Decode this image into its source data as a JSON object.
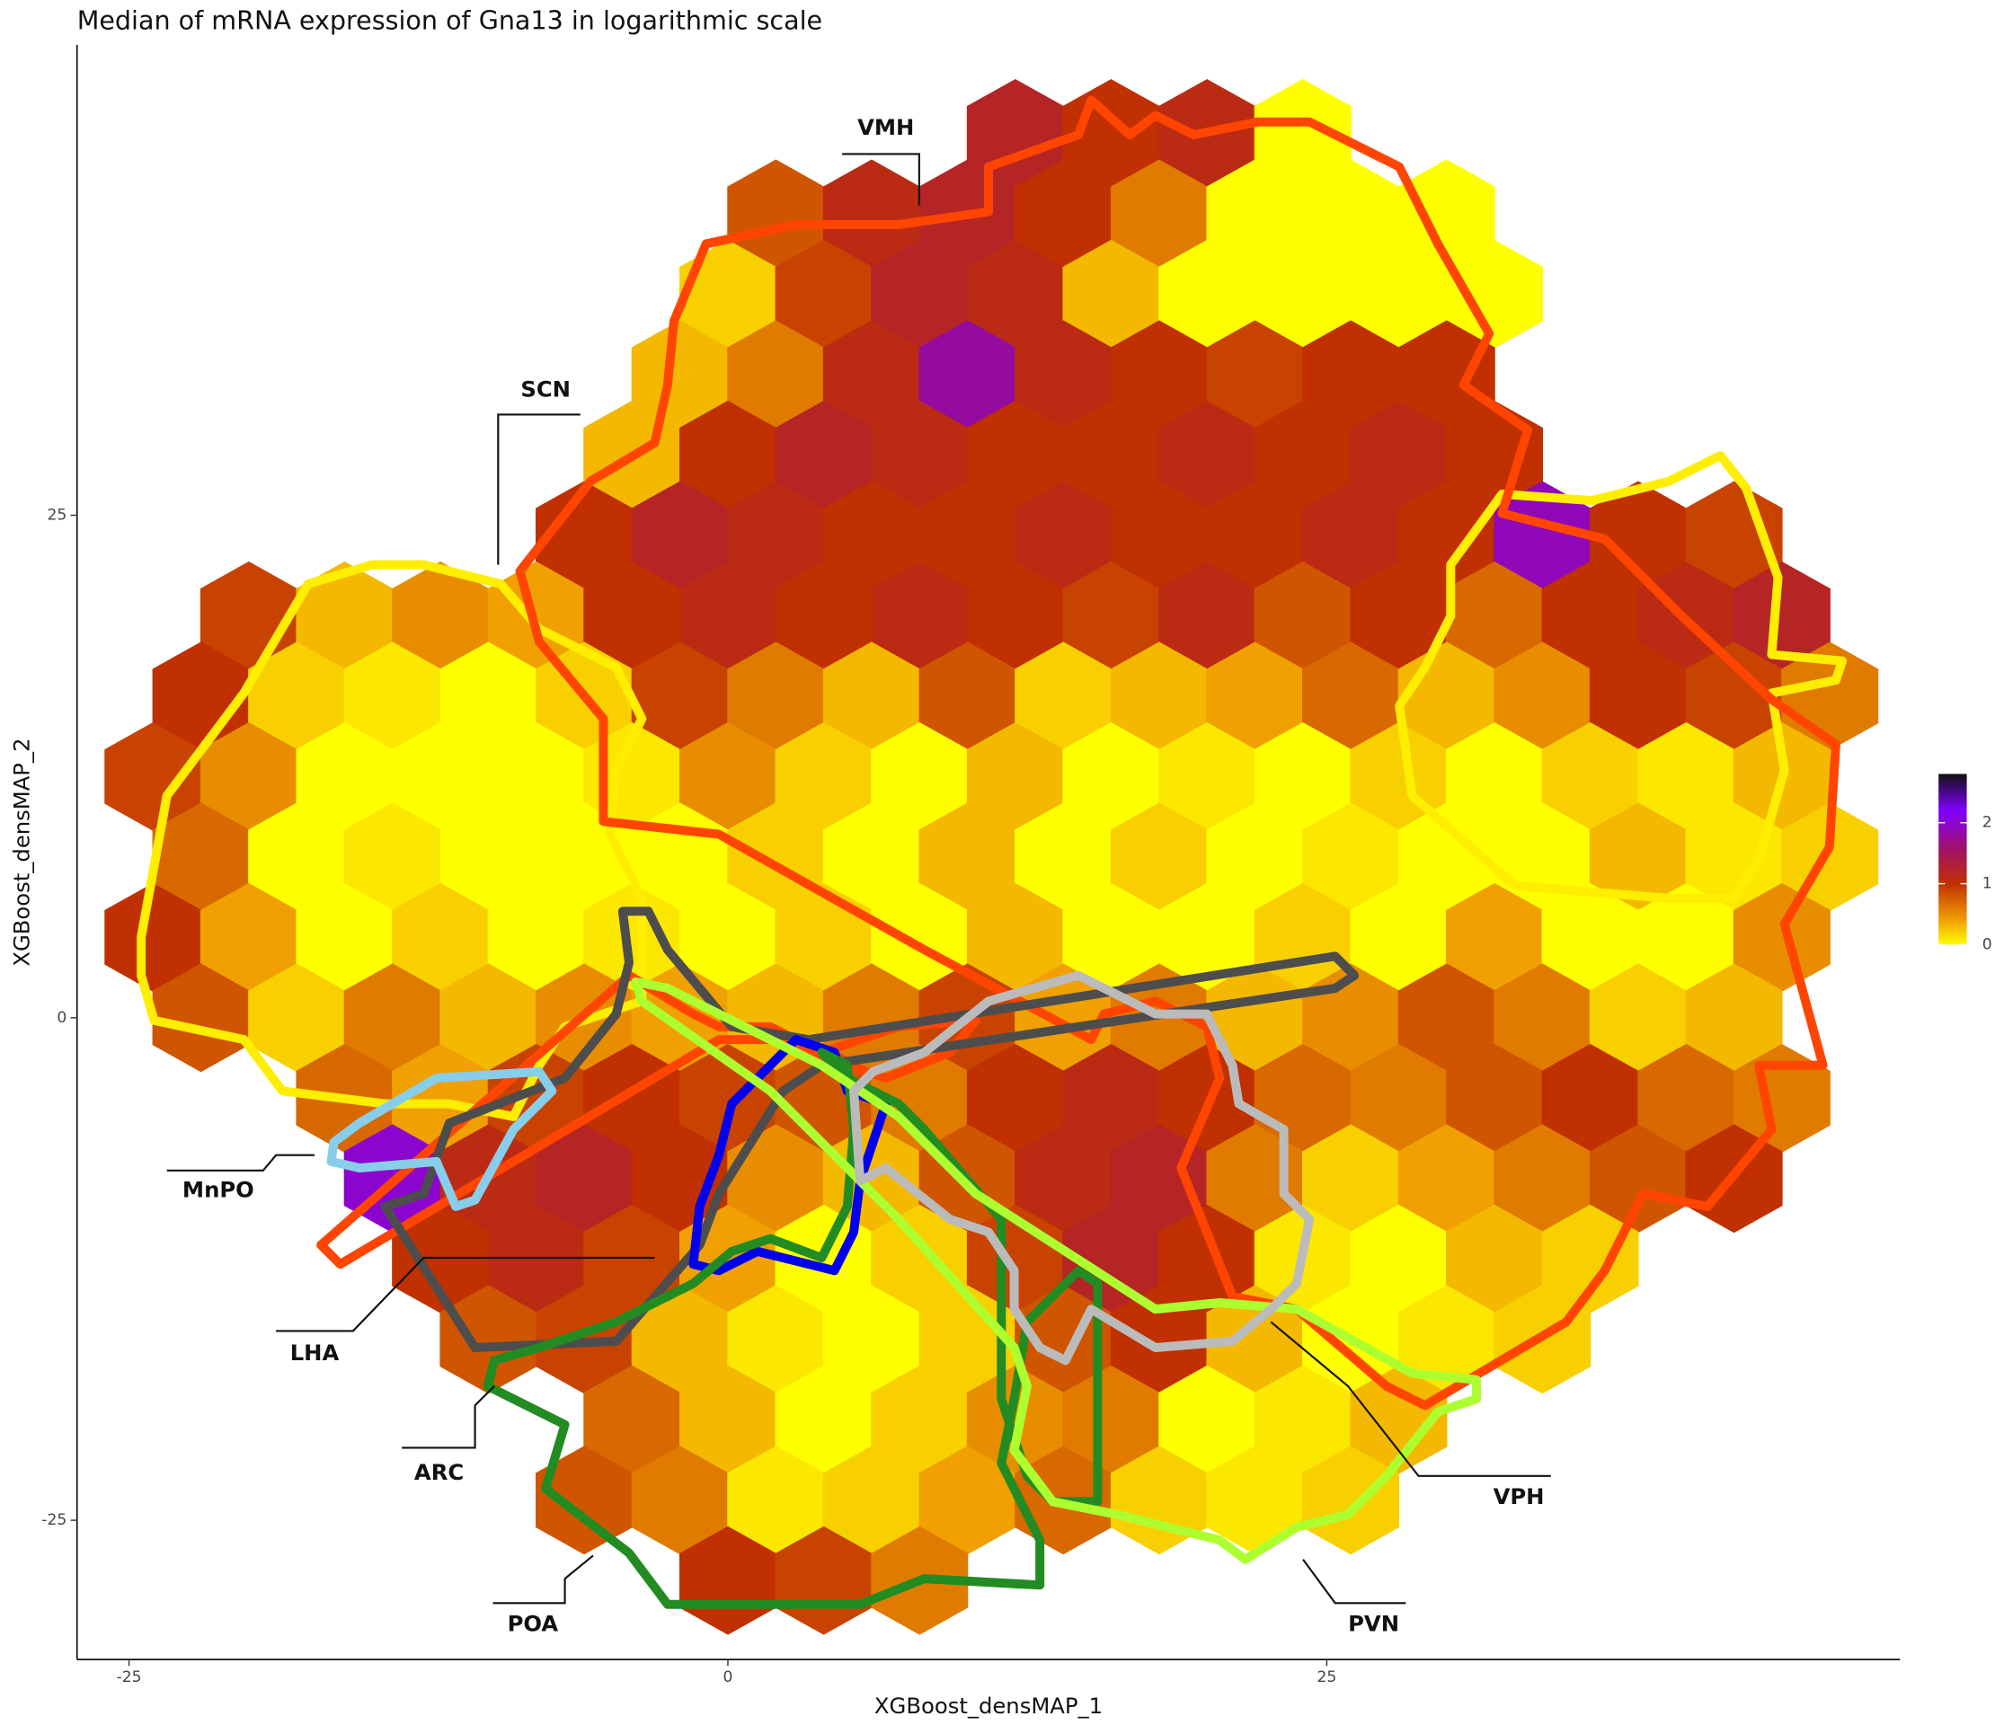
{
  "chart_data": {
    "type": "hexbin",
    "title": "Median of mRNA expression of Gna13 in logarithmic scale",
    "x_label": "XGBoost_densMAP_1",
    "y_label": "XGBoost_densMAP_2",
    "xlim": [
      -27.17,
      48.93
    ],
    "ylim": [
      -31.93,
      48.4
    ],
    "xticks": [
      -25,
      0,
      25
    ],
    "yticks": [
      -25,
      0,
      25
    ],
    "colorbar": {
      "lim": [
        0,
        2.8
      ],
      "ticks": [
        0,
        1,
        2
      ]
    },
    "colormap": [
      {
        "value": 0,
        "color": "#ffff00"
      },
      {
        "value": 0.4,
        "color": "#f0a000"
      },
      {
        "value": 1,
        "color": "#c03000"
      },
      {
        "value": 1.6,
        "color": "#a01070"
      },
      {
        "value": 2.2,
        "color": "#8000ff"
      },
      {
        "value": 2.8,
        "color": "#111111"
      }
    ],
    "hexbins": [
      {
        "y": 44,
        "x": [
          12,
          16,
          20,
          24
        ],
        "values": [
          1.2,
          1.0,
          1.1,
          0
        ]
      },
      {
        "y": 40,
        "x": [
          2,
          6,
          10,
          14,
          18,
          22,
          26,
          30
        ],
        "values": [
          0.8,
          1.1,
          1.2,
          1.0,
          0.6,
          0,
          0,
          0
        ]
      },
      {
        "y": 36,
        "x": [
          0,
          4,
          8,
          12,
          16,
          20,
          24,
          28,
          32
        ],
        "values": [
          0.2,
          0.9,
          1.2,
          1.1,
          0.3,
          0,
          0,
          0,
          0
        ]
      },
      {
        "y": 32,
        "x": [
          -2,
          2,
          6,
          10,
          14,
          18,
          22,
          26,
          30
        ],
        "values": [
          0.3,
          0.6,
          1.1,
          1.8,
          1.1,
          1.0,
          0.9,
          1.0,
          1.0
        ]
      },
      {
        "y": 28,
        "x": [
          -4,
          0,
          4,
          8,
          12,
          16,
          20,
          24,
          28,
          32
        ],
        "values": [
          0.3,
          1.0,
          1.2,
          1.1,
          1.0,
          1.0,
          1.1,
          1.0,
          1.1,
          1.0
        ]
      },
      {
        "y": 24,
        "x": [
          -6,
          -2,
          2,
          6,
          10,
          14,
          18,
          22,
          26,
          30,
          34,
          38,
          42
        ],
        "values": [
          1.0,
          1.2,
          1.1,
          1.0,
          1.0,
          1.1,
          1.0,
          1.0,
          1.1,
          1.0,
          1.9,
          1.0,
          0.9
        ]
      },
      {
        "y": 20,
        "x": [
          -20,
          -16,
          -12,
          -8,
          -4,
          0,
          4,
          8,
          12,
          16,
          20,
          24,
          28,
          32,
          36,
          40,
          44
        ],
        "values": [
          0.9,
          0.3,
          0.5,
          0.4,
          1.0,
          1.1,
          1.0,
          1.1,
          1.0,
          0.9,
          1.1,
          0.8,
          1.0,
          0.7,
          1.0,
          1.1,
          1.2
        ]
      },
      {
        "y": 16,
        "x": [
          -22,
          -18,
          -14,
          -10,
          -6,
          -2,
          2,
          6,
          10,
          14,
          18,
          22,
          26,
          30,
          34,
          38,
          42,
          46
        ],
        "values": [
          1.0,
          0.2,
          0.1,
          0,
          0.2,
          0.9,
          0.6,
          0.3,
          0.8,
          0.2,
          0.3,
          0.4,
          0.7,
          0.3,
          0.5,
          1.0,
          0.9,
          0.6
        ]
      },
      {
        "y": 12,
        "x": [
          -24,
          -20,
          -16,
          -12,
          -8,
          -4,
          0,
          4,
          8,
          12,
          16,
          20,
          24,
          28,
          32,
          36,
          40,
          44
        ],
        "values": [
          0.9,
          0.5,
          0,
          0,
          0,
          0.1,
          0.5,
          0.2,
          0,
          0.3,
          0,
          0.1,
          0,
          0.2,
          0,
          0.2,
          0.1,
          0.3
        ]
      },
      {
        "y": 8,
        "x": [
          -22,
          -18,
          -14,
          -10,
          -6,
          -2,
          2,
          6,
          10,
          14,
          18,
          22,
          26,
          30,
          34,
          38,
          42,
          46
        ],
        "values": [
          0.7,
          0,
          0.1,
          0,
          0,
          0,
          0.2,
          0,
          0.3,
          0,
          0.2,
          0,
          0.1,
          0,
          0,
          0.3,
          0.1,
          0.2
        ]
      },
      {
        "y": 4,
        "x": [
          -24,
          -20,
          -16,
          -12,
          -8,
          -4,
          0,
          4,
          8,
          12,
          16,
          20,
          24,
          28,
          32,
          36,
          40,
          44
        ],
        "values": [
          1.0,
          0.4,
          0,
          0.2,
          0,
          0.1,
          0,
          0.2,
          0,
          0.3,
          0,
          0,
          0.2,
          0,
          0.4,
          0,
          0,
          0.5
        ]
      },
      {
        "y": 0,
        "x": [
          -22,
          -18,
          -14,
          -10,
          -6,
          -2,
          2,
          6,
          10,
          14,
          18,
          22,
          26,
          30,
          34,
          38,
          42
        ],
        "values": [
          0.8,
          0.2,
          0.6,
          0.3,
          0.5,
          0.4,
          0.3,
          0.6,
          0.9,
          0.4,
          0.6,
          0.3,
          0.5,
          0.8,
          0.6,
          0.2,
          0.3
        ]
      },
      {
        "y": -4,
        "x": [
          -16,
          -12,
          -8,
          -4,
          0,
          4,
          8,
          12,
          16,
          20,
          24,
          28,
          32,
          36,
          40,
          44
        ],
        "values": [
          0.7,
          0.4,
          0.9,
          1.0,
          0.9,
          0.8,
          0.6,
          1.0,
          1.1,
          1.0,
          0.7,
          0.6,
          0.8,
          1.0,
          0.7,
          0.6
        ]
      },
      {
        "y": -8,
        "x": [
          -14,
          -10,
          -6,
          -2,
          2,
          6,
          10,
          14,
          18,
          22,
          26,
          30,
          34,
          38,
          42
        ],
        "values": [
          2.0,
          1.1,
          1.2,
          1.0,
          0.5,
          0.3,
          0.8,
          1.1,
          1.2,
          0.6,
          0.2,
          0.4,
          0.6,
          0.8,
          1.0
        ]
      },
      {
        "y": -12,
        "x": [
          -12,
          -8,
          -4,
          0,
          4,
          8,
          12,
          16,
          20,
          24,
          28,
          32,
          36
        ],
        "values": [
          1.0,
          1.1,
          0.9,
          0.4,
          0,
          0.2,
          0.9,
          1.2,
          1.0,
          0.1,
          0,
          0.3,
          0.2
        ]
      },
      {
        "y": -16,
        "x": [
          -10,
          -6,
          -2,
          2,
          6,
          10,
          14,
          18,
          22,
          26,
          30,
          34
        ],
        "values": [
          0.8,
          0.9,
          0.3,
          0.1,
          0,
          0.2,
          0.8,
          1.0,
          0.3,
          0,
          0.1,
          0.2
        ]
      },
      {
        "y": -20,
        "x": [
          -4,
          0,
          4,
          8,
          12,
          16,
          20,
          24,
          28
        ],
        "values": [
          0.7,
          0.3,
          0,
          0.2,
          0.5,
          0.6,
          0,
          0.1,
          0.3
        ]
      },
      {
        "y": -24,
        "x": [
          -6,
          -2,
          2,
          6,
          10,
          14,
          18,
          22,
          26
        ],
        "values": [
          0.8,
          0.6,
          0.1,
          0.2,
          0.4,
          0.7,
          0.2,
          0.1,
          0.2
        ]
      },
      {
        "y": -28,
        "x": [
          0,
          4,
          8
        ],
        "values": [
          1.0,
          0.9,
          0.6
        ]
      }
    ],
    "annotations": [
      "VMH",
      "SCN",
      "MnPO",
      "LHA",
      "ARC",
      "POA",
      "VPH",
      "PVN"
    ]
  }
}
